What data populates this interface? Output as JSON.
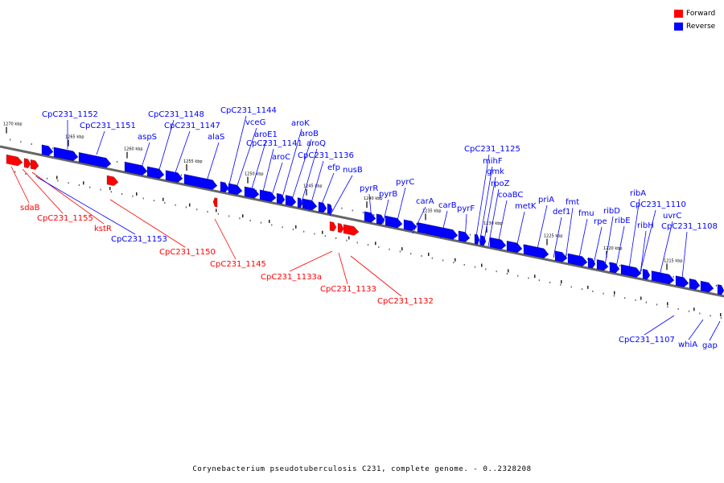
{
  "colors": {
    "forward": "#ff0000",
    "reverse": "#0000ff",
    "backbone": "#666666"
  },
  "legend": {
    "forward_label": "Forward",
    "reverse_label": "Reverse"
  },
  "caption": "Corynebacterium pseudotuberculosis C231, complete genome. - 0..2328208",
  "ticks": [
    "1270 kbp",
    "1265 kbp",
    "1260 kbp",
    "1255 kbp",
    "1250 kbp",
    "1245 kbp",
    "1240 kbp",
    "1235 kbp",
    "1230 kbp",
    "1225 kbp",
    "1220 kbp",
    "1215 kbp"
  ],
  "forward_genes": [
    "sdaB",
    "CpC231_1155",
    "kstR",
    "CpC231_1150",
    "CpC231_1145",
    "CpC231_1133a",
    "CpC231_1133",
    "CpC231_1132"
  ],
  "reverse_genes": [
    "CpC231_1153",
    "CpC231_1152",
    "CpC231_1151",
    "aspS",
    "CpC231_1148",
    "CpC231_1147",
    "alaS",
    "CpC231_1144",
    "vceG",
    "aroE1",
    "CpC231_1141",
    "aroC",
    "aroK",
    "aroB",
    "aroQ",
    "CpC231_1136",
    "efp",
    "nusB",
    "pyrR",
    "pyrB",
    "pyrC",
    "carA",
    "carB",
    "pyrF",
    "CpC231_1125",
    "mihF",
    "gmk",
    "rpoZ",
    "coaBC",
    "metK",
    "priA",
    "def1",
    "fmt",
    "fmu",
    "rpe",
    "ribD",
    "ribE",
    "ribA",
    "CpC231_1110",
    "ribH",
    "uvrC",
    "CpC231_1108",
    "CpC231_1107",
    "whiA",
    "gap"
  ]
}
